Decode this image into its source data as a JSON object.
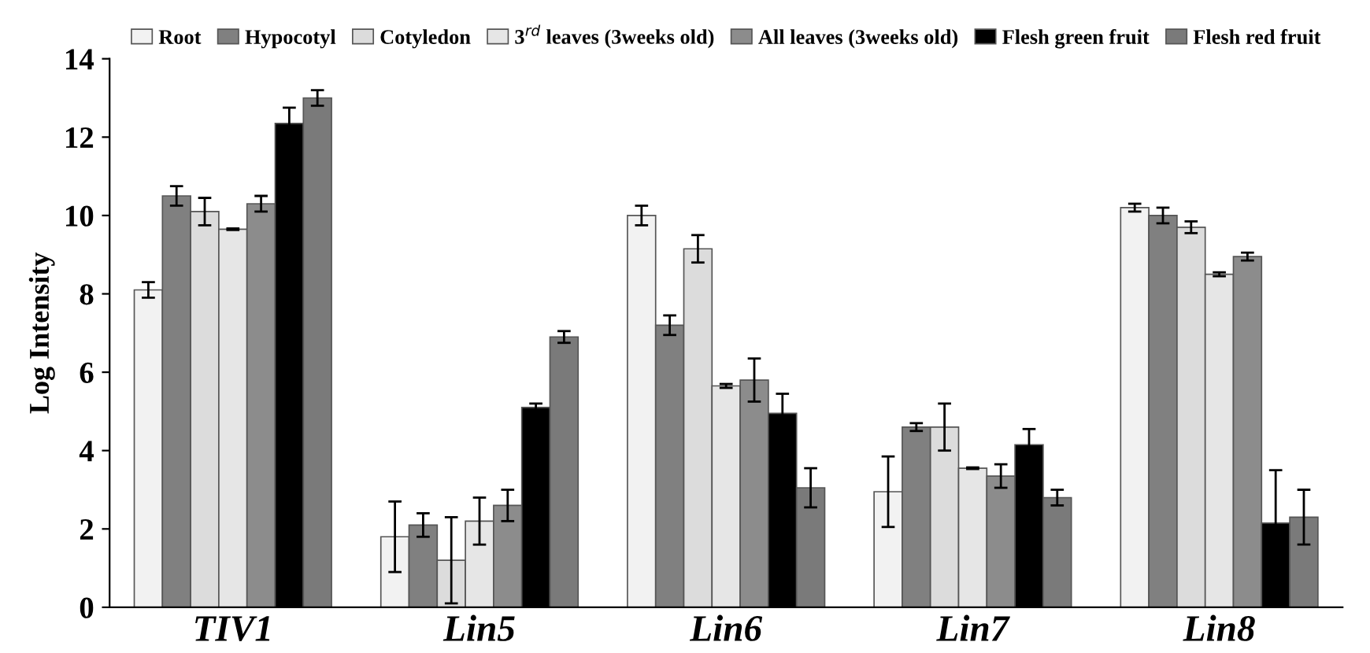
{
  "chart_data": {
    "type": "bar",
    "ylabel": "Log Intensity",
    "categories": [
      "TIV1",
      "Lin5",
      "Lin6",
      "Lin7",
      "Lin8"
    ],
    "ylim": [
      0,
      14
    ],
    "yticks": [
      0,
      2,
      4,
      6,
      8,
      10,
      12,
      14
    ],
    "grid": false,
    "legend": "top",
    "series": [
      {
        "name": "Root",
        "color": "#f2f2f2",
        "values": [
          8.1,
          1.8,
          10.0,
          2.95,
          10.2
        ],
        "errors": [
          0.2,
          0.9,
          0.25,
          0.9,
          0.1
        ]
      },
      {
        "name": "Hypocotyl",
        "color": "#808080",
        "values": [
          10.5,
          2.1,
          7.2,
          4.6,
          10.0
        ],
        "errors": [
          0.25,
          0.3,
          0.25,
          0.1,
          0.2
        ]
      },
      {
        "name": "Cotyledon",
        "color": "#dcdcdc",
        "values": [
          10.1,
          1.2,
          9.15,
          4.6,
          9.7
        ],
        "errors": [
          0.35,
          1.1,
          0.35,
          0.6,
          0.15
        ]
      },
      {
        "name": "3$^{rd}$ leaves (3weeks old)",
        "color": "#e6e6e6",
        "values": [
          9.65,
          2.2,
          5.65,
          3.55,
          8.5
        ],
        "errors": [
          0.02,
          0.6,
          0.05,
          0.02,
          0.05
        ]
      },
      {
        "name": "All leaves (3weeks old)",
        "color": "#8c8c8c",
        "values": [
          10.3,
          2.6,
          5.8,
          3.35,
          8.95
        ],
        "errors": [
          0.2,
          0.4,
          0.55,
          0.3,
          0.1
        ]
      },
      {
        "name": "Flesh green fruit",
        "color": "#000000",
        "values": [
          12.35,
          5.1,
          4.95,
          4.15,
          2.15
        ],
        "errors": [
          0.4,
          0.1,
          0.5,
          0.4,
          1.35
        ]
      },
      {
        "name": "Flesh red fruit",
        "color": "#7a7a7a",
        "values": [
          13.0,
          6.9,
          3.05,
          2.8,
          2.3
        ],
        "errors": [
          0.2,
          0.15,
          0.5,
          0.2,
          0.7
        ]
      }
    ]
  }
}
